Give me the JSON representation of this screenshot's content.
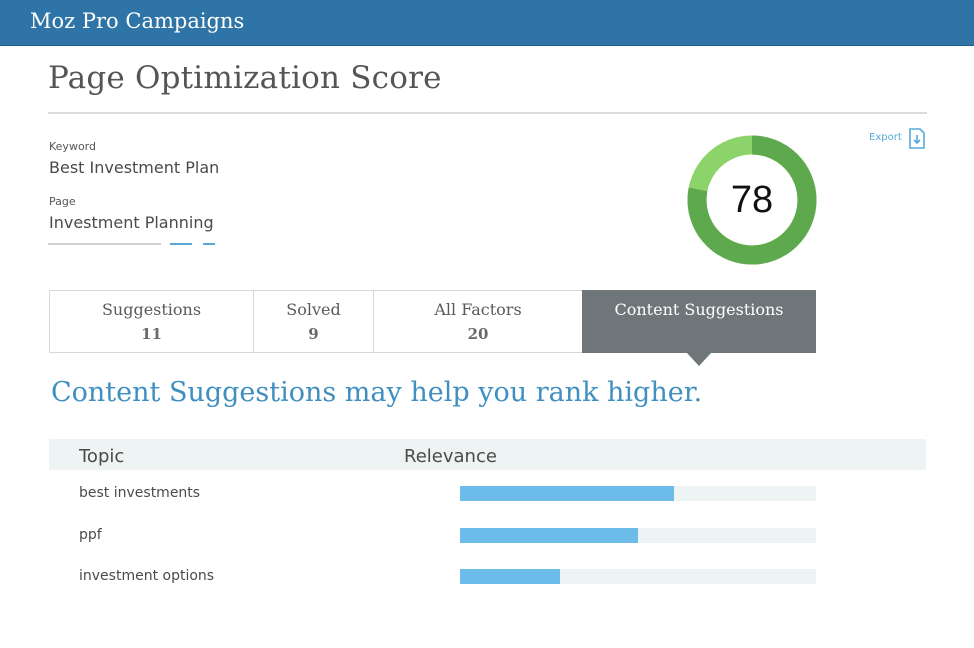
{
  "header": {
    "app_title": "Moz Pro Campaigns"
  },
  "page": {
    "title": "Page Optimization Score",
    "keyword_label": "Keyword",
    "keyword_value": "Best Investment Plan",
    "page_label": "Page",
    "page_value": "Investment Planning"
  },
  "export": {
    "label": "Export",
    "icon": "export-download-icon"
  },
  "score": {
    "value": "78",
    "fraction": 0.78,
    "colors": {
      "main": "#5ea94e",
      "light": "#8cd36a"
    }
  },
  "tabs": [
    {
      "label": "Suggestions",
      "count": "11",
      "active": false
    },
    {
      "label": "Solved",
      "count": "9",
      "active": false
    },
    {
      "label": "All Factors",
      "count": "20",
      "active": false
    },
    {
      "label": "Content Suggestions",
      "count": "",
      "active": true
    }
  ],
  "content": {
    "headline": "Content Suggestions may help you rank higher.",
    "columns": {
      "topic": "Topic",
      "relevance": "Relevance"
    },
    "rows": [
      {
        "topic": "best investments",
        "relevance": 0.6
      },
      {
        "topic": "ppf",
        "relevance": 0.5
      },
      {
        "topic": "investment options",
        "relevance": 0.28
      }
    ]
  },
  "colors": {
    "brand": "#2f74a6",
    "accent": "#3f8fc0",
    "bar": "#6dbbe8",
    "active_tab": "#6f7679"
  }
}
